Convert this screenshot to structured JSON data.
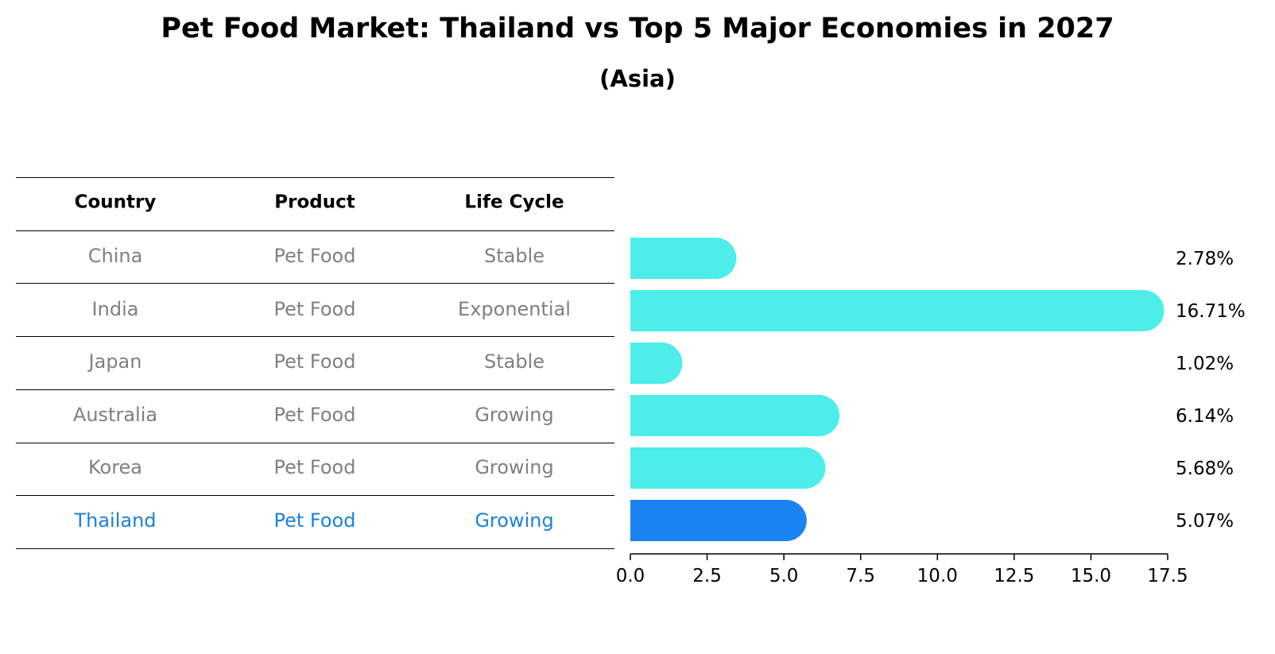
{
  "title": "Pet Food Market: Thailand vs Top 5 Major Economies in 2027",
  "subtitle": "(Asia)",
  "colors": {
    "bar": "#4dede9",
    "highlight_bar": "#1a84f5",
    "muted_text": "#808080",
    "highlight_text": "#1982d8"
  },
  "table": {
    "headers": [
      "Country",
      "Product",
      "Life Cycle"
    ],
    "rows": [
      {
        "country": "China",
        "product": "Pet Food",
        "life_cycle": "Stable",
        "highlight": false
      },
      {
        "country": "India",
        "product": "Pet Food",
        "life_cycle": "Exponential",
        "highlight": false
      },
      {
        "country": "Japan",
        "product": "Pet Food",
        "life_cycle": "Stable",
        "highlight": false
      },
      {
        "country": "Australia",
        "product": "Pet Food",
        "life_cycle": "Growing",
        "highlight": false
      },
      {
        "country": "Korea",
        "product": "Pet Food",
        "life_cycle": "Growing",
        "highlight": false
      },
      {
        "country": "Thailand",
        "product": "Pet Food",
        "life_cycle": "Growing",
        "highlight": true
      }
    ]
  },
  "chart_data": {
    "type": "bar",
    "orientation": "horizontal",
    "title": "Pet Food Market: Thailand vs Top 5 Major Economies in 2027",
    "subtitle": "(Asia)",
    "categories": [
      "China",
      "India",
      "Japan",
      "Australia",
      "Korea",
      "Thailand"
    ],
    "values": [
      2.78,
      16.71,
      1.02,
      6.14,
      5.68,
      5.07
    ],
    "value_labels": [
      "2.78%",
      "16.71%",
      "1.02%",
      "6.14%",
      "5.68%",
      "5.07%"
    ],
    "highlight_index": 5,
    "xlim": [
      0,
      17.5
    ],
    "xticks": [
      0.0,
      2.5,
      5.0,
      7.5,
      10.0,
      12.5,
      15.0,
      17.5
    ],
    "xtick_labels": [
      "0.0",
      "2.5",
      "5.0",
      "7.5",
      "10.0",
      "12.5",
      "15.0",
      "17.5"
    ],
    "xlabel": "",
    "ylabel": "",
    "grid": false,
    "legend": "none"
  }
}
